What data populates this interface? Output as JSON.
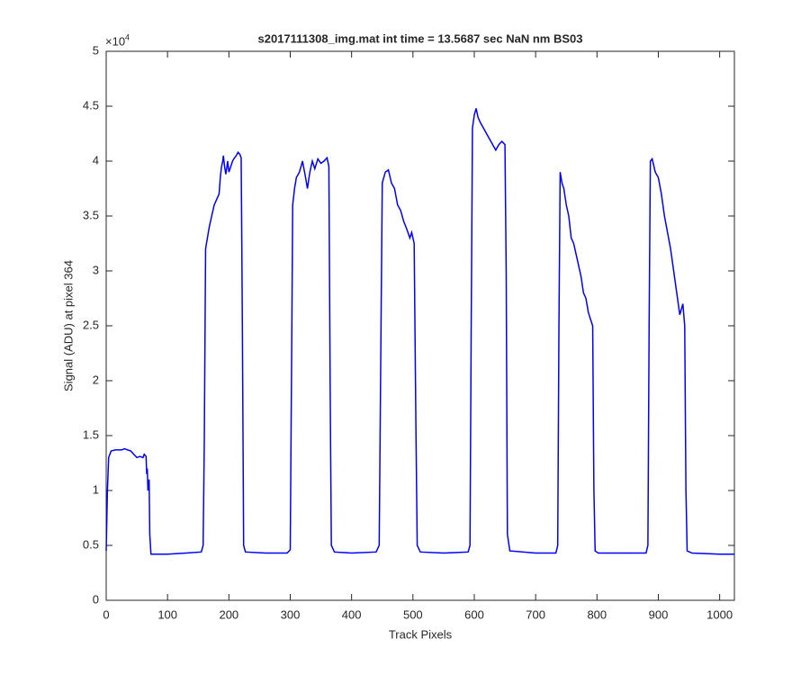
{
  "chart_data": {
    "type": "line",
    "title": "s2017111308_img.mat int time = 13.5687 sec  NaN nm BS03",
    "x_label": "Track Pixels",
    "y_label": "Signal (ADU) at pixel 364",
    "y_multiplier": "×10",
    "y_multiplier_exponent": "4",
    "xlim": [
      0,
      1024
    ],
    "ylim": [
      0,
      5
    ],
    "xticks": [
      0,
      100,
      200,
      300,
      400,
      500,
      600,
      700,
      800,
      900,
      1000
    ],
    "yticks": [
      0,
      0.5,
      1,
      1.5,
      2,
      2.5,
      3,
      3.5,
      4,
      4.5,
      5
    ],
    "grid": false,
    "series": [
      {
        "color": "#0000ff",
        "x": [
          0,
          2,
          4,
          8,
          15,
          25,
          30,
          40,
          45,
          50,
          55,
          60,
          62,
          65,
          66,
          67,
          68,
          70,
          71,
          73,
          80,
          100,
          130,
          155,
          158,
          160,
          162,
          165,
          168,
          172,
          176,
          180,
          184,
          186,
          188,
          190,
          191,
          193,
          195,
          198,
          200,
          203,
          206,
          208,
          212,
          215,
          218,
          220,
          222,
          224,
          227,
          260,
          295,
          300,
          302,
          304,
          307,
          310,
          315,
          320,
          325,
          328,
          332,
          336,
          340,
          345,
          350,
          355,
          360,
          363,
          365,
          367,
          372,
          400,
          440,
          445,
          448,
          450,
          455,
          460,
          465,
          470,
          475,
          480,
          485,
          490,
          495,
          498,
          500,
          502,
          505,
          507,
          512,
          550,
          590,
          593,
          595,
          597,
          600,
          603,
          606,
          610,
          615,
          620,
          625,
          630,
          635,
          640,
          645,
          650,
          652,
          654,
          658,
          700,
          733,
          736,
          738,
          740,
          743,
          746,
          750,
          754,
          758,
          762,
          766,
          770,
          774,
          778,
          782,
          786,
          790,
          793,
          795,
          797,
          802,
          850,
          880,
          883,
          885,
          887,
          890,
          895,
          900,
          905,
          910,
          915,
          920,
          925,
          930,
          935,
          940,
          943,
          945,
          947,
          955,
          1000,
          1024
        ],
        "values": [
          0.45,
          1.0,
          1.3,
          1.36,
          1.37,
          1.37,
          1.38,
          1.36,
          1.33,
          1.3,
          1.31,
          1.3,
          1.33,
          1.31,
          1.15,
          1.2,
          1.0,
          1.1,
          0.6,
          0.42,
          0.42,
          0.42,
          0.43,
          0.44,
          0.5,
          1.5,
          3.2,
          3.3,
          3.4,
          3.5,
          3.6,
          3.65,
          3.7,
          3.85,
          3.95,
          4.0,
          4.05,
          3.95,
          3.88,
          4.0,
          3.9,
          3.95,
          4.0,
          4.02,
          4.05,
          4.08,
          4.06,
          4.03,
          2.5,
          0.5,
          0.44,
          0.43,
          0.43,
          0.46,
          2.0,
          3.6,
          3.75,
          3.85,
          3.9,
          4.0,
          3.85,
          3.75,
          3.9,
          4.0,
          3.93,
          4.02,
          3.98,
          4.0,
          4.03,
          3.95,
          2.0,
          0.5,
          0.44,
          0.43,
          0.44,
          0.5,
          2.5,
          3.8,
          3.9,
          3.92,
          3.8,
          3.75,
          3.6,
          3.55,
          3.45,
          3.38,
          3.3,
          3.35,
          3.3,
          3.25,
          1.5,
          0.5,
          0.44,
          0.43,
          0.44,
          0.5,
          2.5,
          4.3,
          4.42,
          4.48,
          4.4,
          4.35,
          4.3,
          4.25,
          4.2,
          4.15,
          4.1,
          4.15,
          4.18,
          4.15,
          3.0,
          0.6,
          0.45,
          0.43,
          0.43,
          0.5,
          2.5,
          3.9,
          3.8,
          3.75,
          3.6,
          3.5,
          3.3,
          3.25,
          3.15,
          3.05,
          2.95,
          2.8,
          2.75,
          2.62,
          2.55,
          2.5,
          1.0,
          0.45,
          0.43,
          0.43,
          0.43,
          0.5,
          2.5,
          4.0,
          4.02,
          3.9,
          3.85,
          3.7,
          3.5,
          3.35,
          3.2,
          3.0,
          2.8,
          2.6,
          2.7,
          2.5,
          1.0,
          0.45,
          0.43,
          0.42,
          0.42
        ]
      }
    ]
  }
}
